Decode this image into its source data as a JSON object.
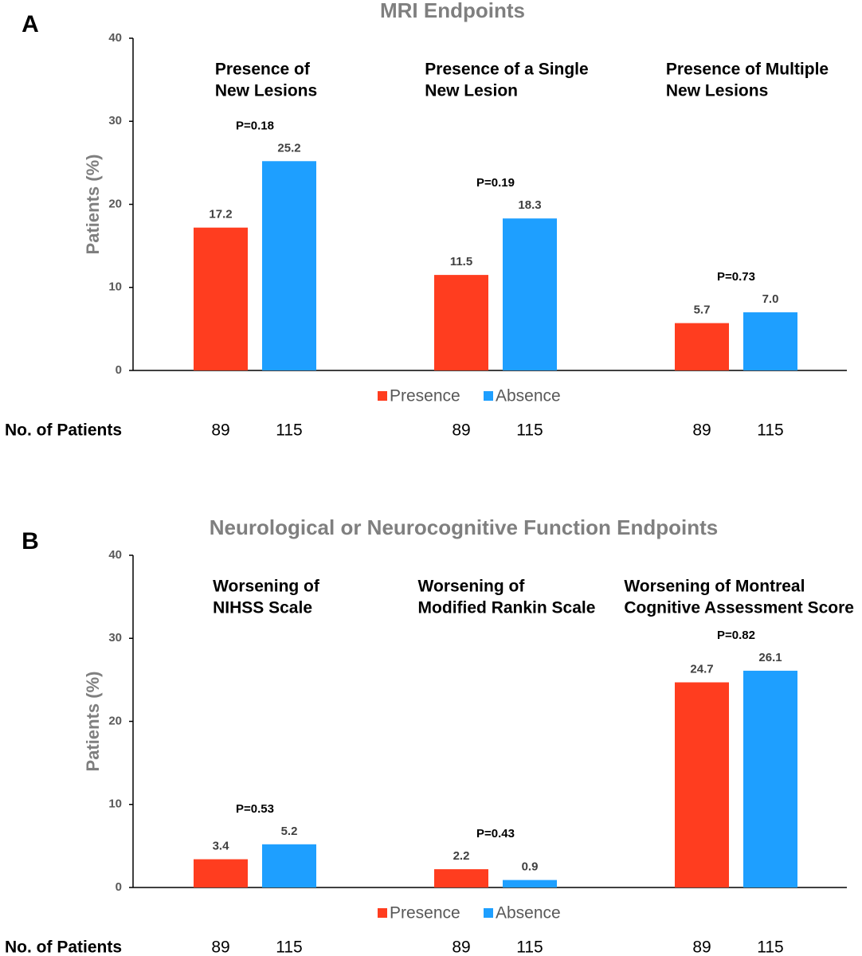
{
  "chart_data": [
    {
      "type": "bar",
      "panel": "A",
      "title": "MRI Endpoints",
      "y_label": "Patients (%)",
      "categories": [
        [
          "Presence of",
          "New Lesions"
        ],
        [
          "Presence of a Single",
          "New Lesion"
        ],
        [
          "Presence of Multiple",
          "New Lesions"
        ]
      ],
      "series": [
        {
          "name": "Presence",
          "color": "#ff3d1f",
          "values": [
            17.2,
            11.5,
            5.7
          ],
          "value_labels": [
            "17.2",
            "11.5",
            "5.7"
          ],
          "patients": [
            89,
            89,
            89
          ]
        },
        {
          "name": "Absence",
          "color": "#1e9fff",
          "values": [
            25.2,
            18.3,
            7.0
          ],
          "value_labels": [
            "25.2",
            "18.3",
            "7.0"
          ],
          "patients": [
            115,
            115,
            115
          ]
        }
      ],
      "p_values": [
        "P=0.18",
        "P=0.19",
        "P=0.73"
      ],
      "patients_label": "No. of Patients",
      "ylim": [
        0,
        40
      ],
      "yticks": [
        0,
        10,
        20,
        30,
        40
      ],
      "legend": "bottom"
    },
    {
      "type": "bar",
      "panel": "B",
      "title": "Neurological or Neurocognitive Function Endpoints",
      "y_label": "Patients (%)",
      "categories": [
        [
          "Worsening of",
          "NIHSS Scale"
        ],
        [
          "Worsening of",
          "Modified Rankin Scale"
        ],
        [
          "Worsening of Montreal",
          "Cognitive Assessment Score"
        ]
      ],
      "series": [
        {
          "name": "Presence",
          "color": "#ff3d1f",
          "values": [
            3.4,
            2.2,
            24.7
          ],
          "value_labels": [
            "3.4",
            "2.2",
            "24.7"
          ],
          "patients": [
            89,
            89,
            89
          ]
        },
        {
          "name": "Absence",
          "color": "#1e9fff",
          "values": [
            5.2,
            0.9,
            26.1
          ],
          "value_labels": [
            "5.2",
            "0.9",
            "26.1"
          ],
          "patients": [
            115,
            115,
            115
          ]
        }
      ],
      "p_values": [
        "P=0.53",
        "P=0.43",
        "P=0.82"
      ],
      "patients_label": "No. of Patients",
      "ylim": [
        0,
        40
      ],
      "yticks": [
        0,
        10,
        20,
        30,
        40
      ],
      "legend": "bottom"
    }
  ]
}
